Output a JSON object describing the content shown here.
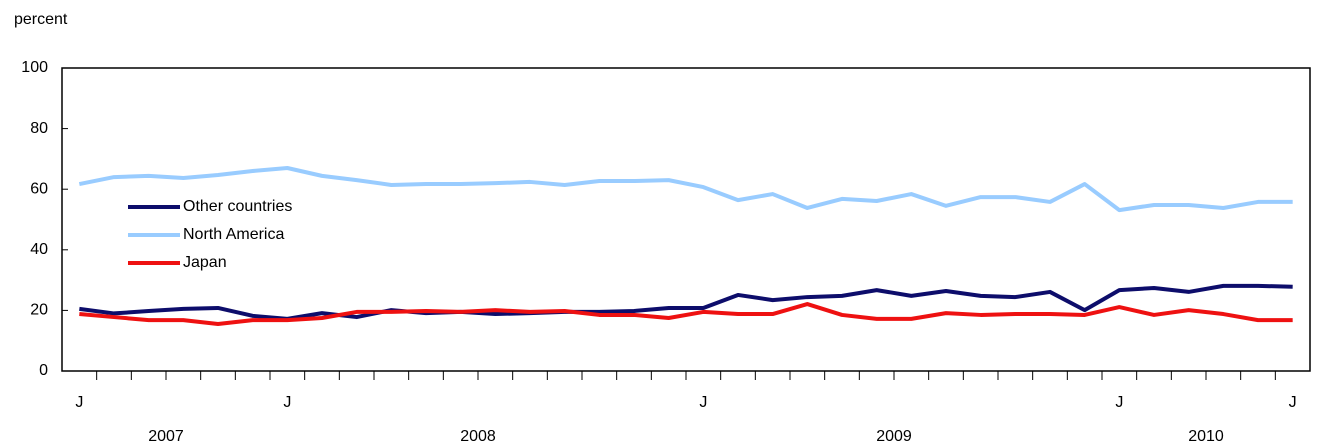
{
  "chart_data": {
    "type": "line",
    "y_label": "percent",
    "categories": [
      "J",
      null,
      null,
      null,
      null,
      null,
      "J",
      null,
      null,
      null,
      null,
      null,
      null,
      null,
      null,
      null,
      null,
      null,
      "J",
      null,
      null,
      null,
      null,
      null,
      null,
      null,
      null,
      null,
      null,
      null,
      "J",
      null,
      null,
      null,
      null,
      "J"
    ],
    "year_labels": [
      "2007",
      "2008",
      "2009",
      "2010"
    ],
    "ylim": [
      0,
      100
    ],
    "yticks": [
      0,
      20,
      40,
      60,
      80,
      100
    ],
    "grid": false,
    "legend": "upper left",
    "series": [
      {
        "name": "Other countries",
        "color": "#0d0d6b",
        "values": [
          20.5,
          19,
          19.8,
          20.5,
          20.8,
          18.2,
          17.2,
          19.1,
          17.8,
          20.1,
          19.1,
          19.5,
          18.8,
          19.1,
          19.5,
          19.5,
          19.8,
          20.8,
          20.8,
          25.1,
          23.4,
          24.4,
          24.8,
          26.7,
          24.8,
          26.4,
          24.8,
          24.4,
          26.1,
          20.1,
          26.7,
          27.4,
          26.1,
          28.1,
          28.1,
          27.8
        ]
      },
      {
        "name": "North America",
        "color": "#99ccff",
        "values": [
          61.7,
          64,
          64.4,
          63.7,
          64.7,
          66,
          67,
          64.4,
          63,
          61.4,
          61.7,
          61.7,
          62,
          62.4,
          61.4,
          62.7,
          62.7,
          63,
          60.7,
          56.4,
          58.4,
          53.8,
          56.8,
          56.1,
          58.4,
          54.5,
          57.4,
          57.4,
          55.8,
          61.7,
          53.1,
          54.8,
          54.8,
          53.8,
          55.8,
          55.8
        ]
      },
      {
        "name": "Japan",
        "color": "#ee1111",
        "values": [
          18.8,
          17.8,
          16.8,
          16.8,
          15.5,
          16.8,
          16.8,
          17.5,
          19.5,
          19.5,
          19.8,
          19.5,
          20.1,
          19.5,
          19.8,
          18.5,
          18.5,
          17.5,
          19.5,
          18.8,
          18.8,
          22.1,
          18.5,
          17.2,
          17.2,
          19.1,
          18.5,
          18.8,
          18.8,
          18.5,
          21.1,
          18.5,
          20.1,
          18.8,
          16.8,
          16.8
        ]
      }
    ]
  }
}
